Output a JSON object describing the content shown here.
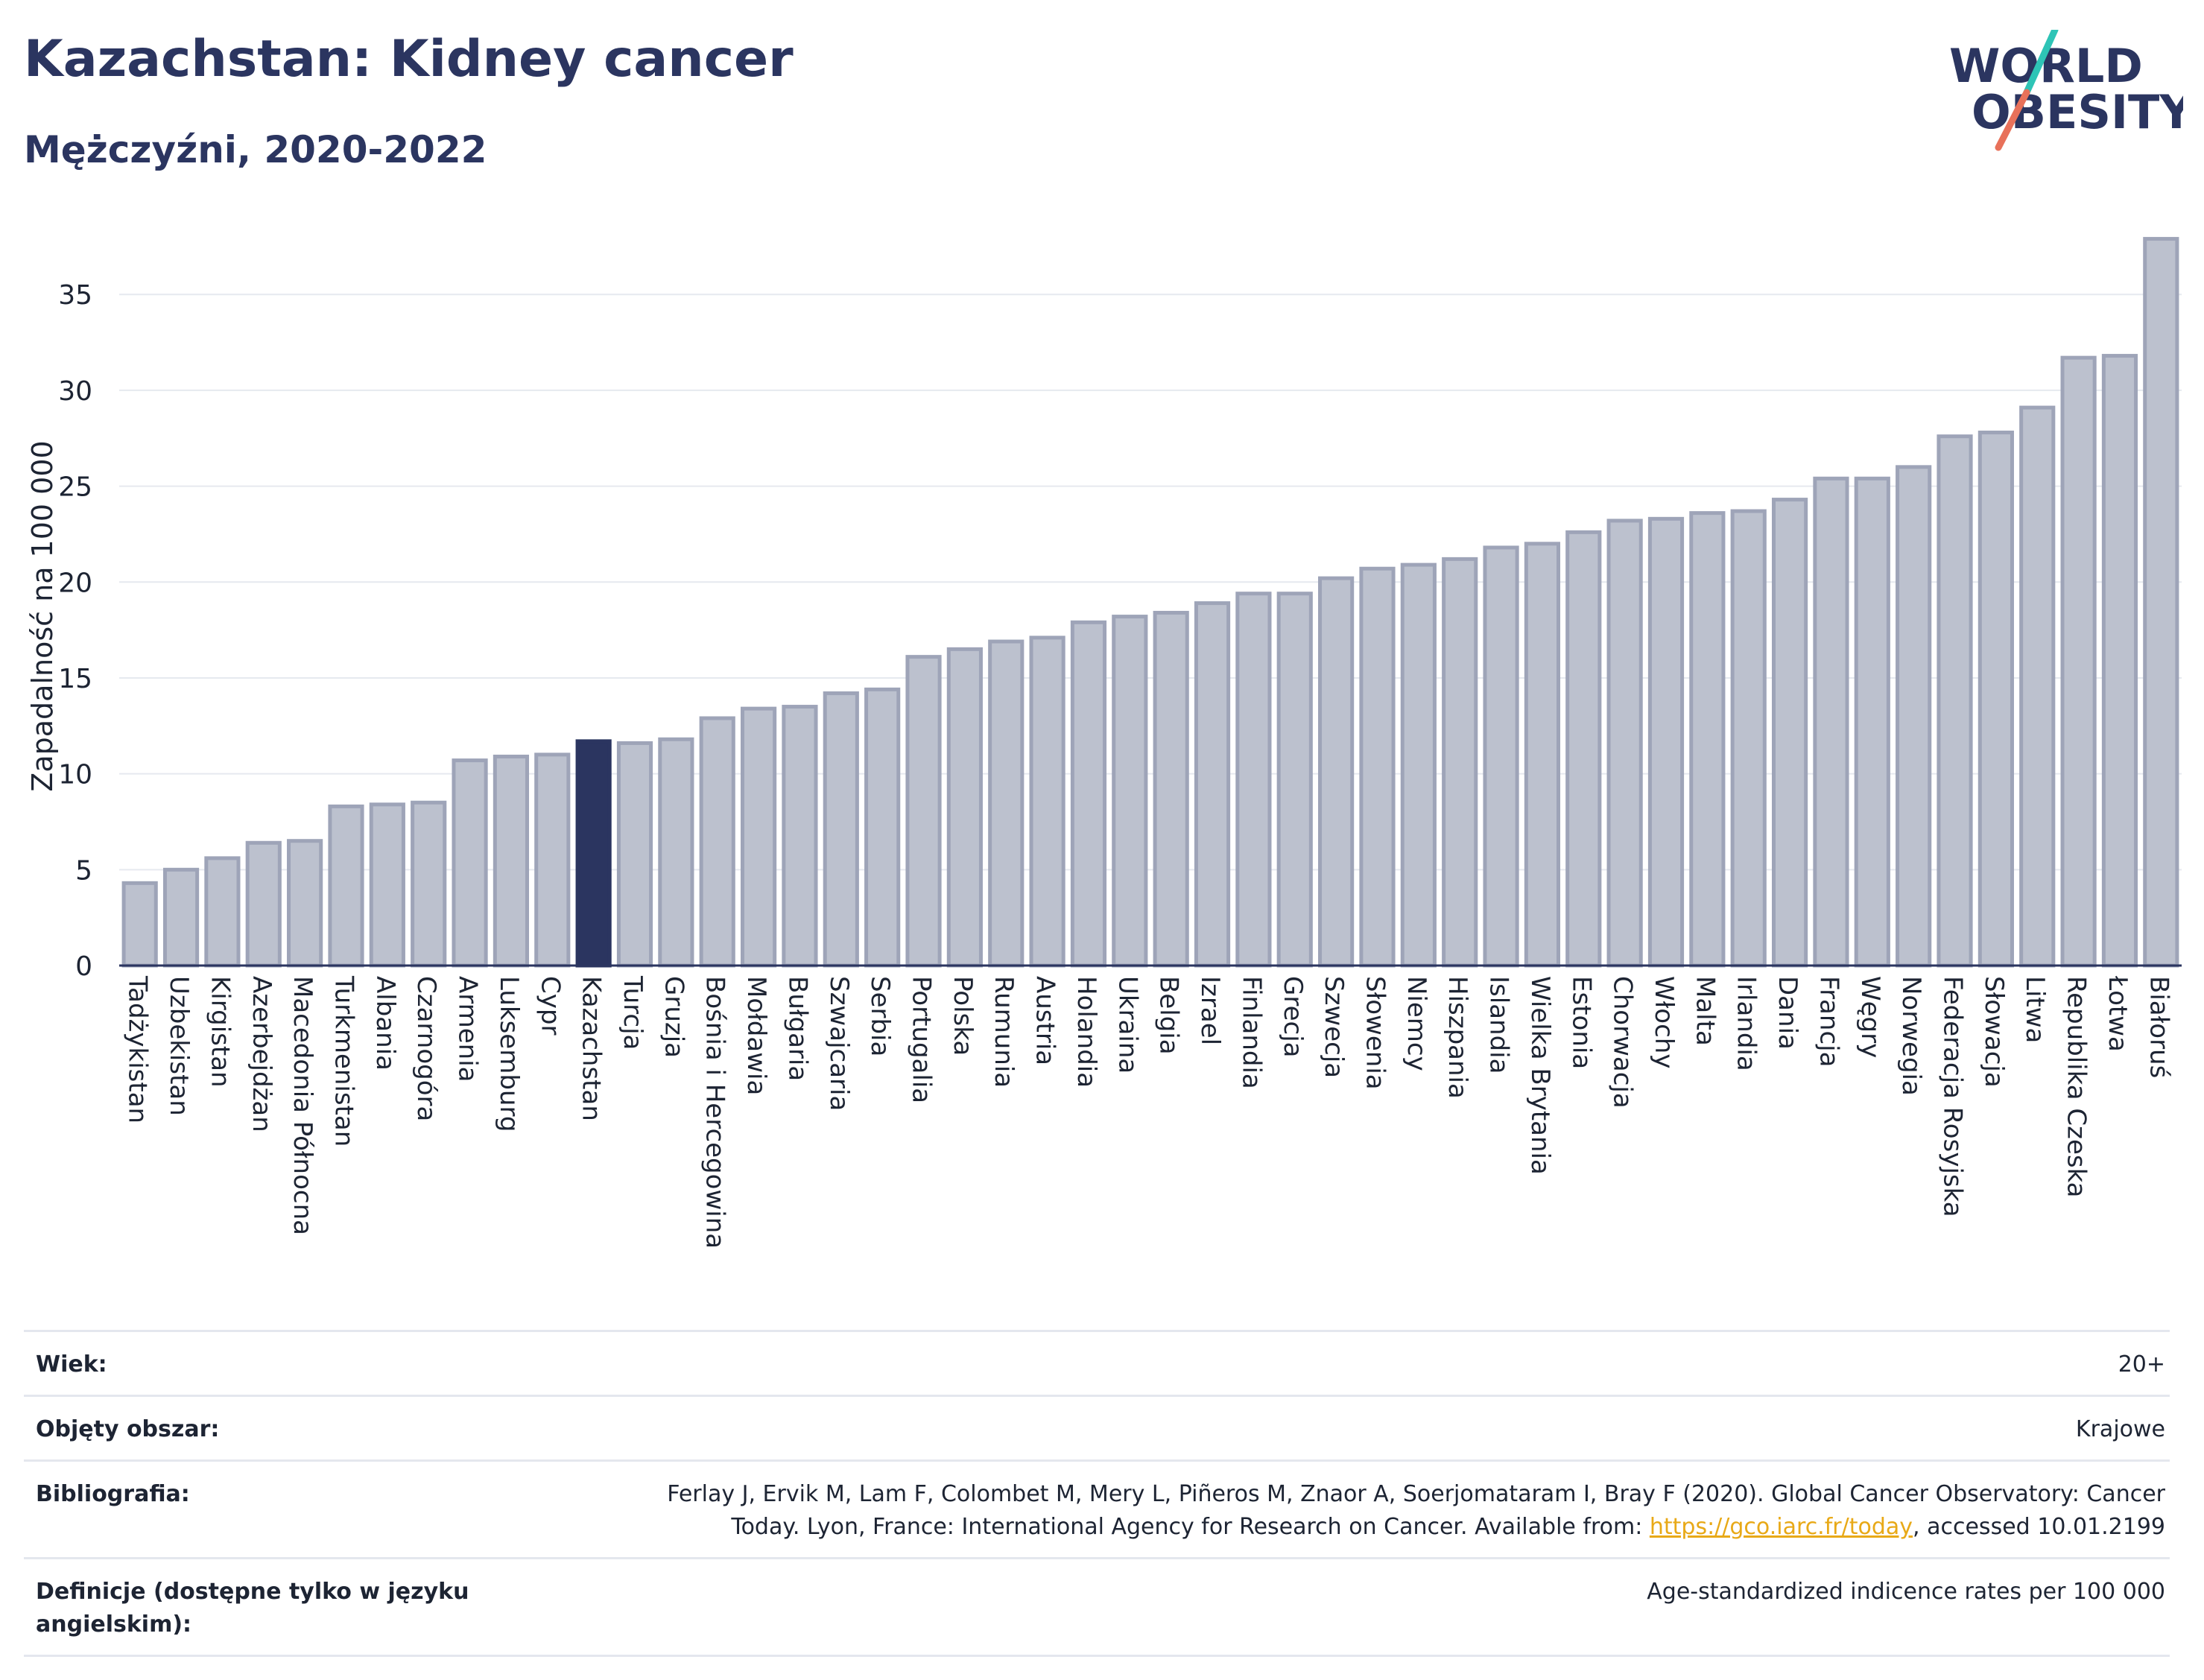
{
  "header": {
    "title": "Kazachstan: Kidney cancer",
    "subtitle": "Mężczyźni, 2020-2022"
  },
  "logo": {
    "line1": "WORLD",
    "line2": "OBESITY"
  },
  "colors": {
    "bar": "#bcc1ce",
    "bar_border": "#9ea4b8",
    "highlight": "#2b3560",
    "grid": "#e6e9ef",
    "axis": "#2b3560",
    "link": "#e8a917"
  },
  "chart_data": {
    "type": "bar",
    "ylabel": "Zapadalność na 100 000",
    "ylim": [
      0,
      38
    ],
    "yticks": [
      0,
      5,
      10,
      15,
      20,
      25,
      30,
      35
    ],
    "grid": true,
    "highlight": "Kazachstan",
    "categories": [
      "Tadżykistan",
      "Uzbekistan",
      "Kirgistan",
      "Azerbejdżan",
      "Macedonia Północna",
      "Turkmenistan",
      "Albania",
      "Czarnogóra",
      "Armenia",
      "Luksemburg",
      "Cypr",
      "Kazachstan",
      "Turcja",
      "Gruzja",
      "Bośnia i Hercegowina",
      "Mołdawia",
      "Bułgaria",
      "Szwajcaria",
      "Serbia",
      "Portugalia",
      "Polska",
      "Rumunia",
      "Austria",
      "Holandia",
      "Ukraina",
      "Belgia",
      "Izrael",
      "Finlandia",
      "Grecja",
      "Szwecja",
      "Słowenia",
      "Niemcy",
      "Hiszpania",
      "Islandia",
      "Wielka Brytania",
      "Estonia",
      "Chorwacja",
      "Włochy",
      "Malta",
      "Irlandia",
      "Dania",
      "Francja",
      "Węgry",
      "Norwegia",
      "Federacja Rosyjska",
      "Słowacja",
      "Litwa",
      "Republika Czeska",
      "Łotwa",
      "Białoruś"
    ],
    "values": [
      4.3,
      5.0,
      5.6,
      6.4,
      6.5,
      8.3,
      8.4,
      8.5,
      10.7,
      10.9,
      11.0,
      11.7,
      11.6,
      11.8,
      12.9,
      13.4,
      13.5,
      14.2,
      14.4,
      16.1,
      16.5,
      16.9,
      17.1,
      17.9,
      18.2,
      18.4,
      18.9,
      19.4,
      19.4,
      20.2,
      20.7,
      20.9,
      21.2,
      21.8,
      22.0,
      22.6,
      23.2,
      23.3,
      23.6,
      23.7,
      24.3,
      25.4,
      25.4,
      26.0,
      27.6,
      27.8,
      29.1,
      31.7,
      31.8,
      37.9
    ]
  },
  "meta": {
    "age_label": "Wiek:",
    "age_value": "20+",
    "area_label": "Objęty obszar:",
    "area_value": "Krajowe",
    "biblio_label": "Bibliografia:",
    "biblio_text1": "Ferlay J, Ervik M, Lam F, Colombet M, Mery L, Piñeros M, Znaor A, Soerjomataram I, Bray F (2020). Global Cancer Observatory: Cancer",
    "biblio_text2": "Today. Lyon, France: International Agency for Research on Cancer. Available from:",
    "biblio_link": "https://gco.iarc.fr/today",
    "biblio_text3": ", accessed 10.01.2199",
    "def_label": "Definicje (dostępne tylko w języku angielskim):",
    "def_value": "Age-standardized indicence rates per 100 000"
  }
}
